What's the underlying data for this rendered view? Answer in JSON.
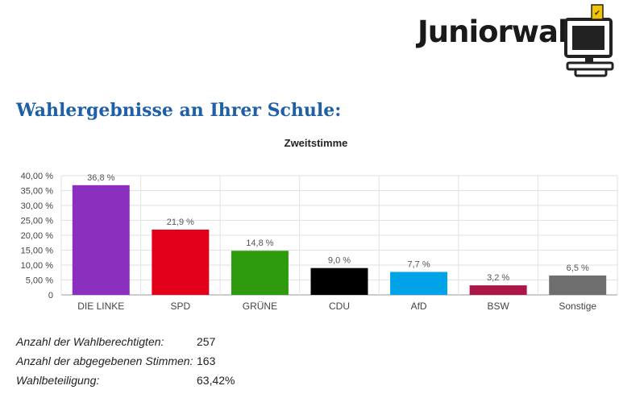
{
  "header": {
    "logo_text": "Juniorwahl",
    "title": "Wahlergebnisse an Ihrer Schule:"
  },
  "chart_data": {
    "type": "bar",
    "title": "Zweitstimme",
    "xlabel": "",
    "ylabel": "",
    "ylim": [
      0,
      40
    ],
    "yticks": [
      "0",
      "5,00 %",
      "10,00 %",
      "15,00 %",
      "20,00 %",
      "25,00 %",
      "30,00 %",
      "35,00 %",
      "40,00 %"
    ],
    "grid": true,
    "legend": "none",
    "categories": [
      "DIE LINKE",
      "SPD",
      "GRÜNE",
      "CDU",
      "AfD",
      "BSW",
      "Sonstige"
    ],
    "values": [
      36.8,
      21.9,
      14.8,
      9.0,
      7.7,
      3.2,
      6.5
    ],
    "value_labels": [
      "36,8 %",
      "21,9 %",
      "14,8 %",
      "9,0 %",
      "7,7 %",
      "3,2 %",
      "6,5 %"
    ],
    "colors": [
      "#8a2fbf",
      "#e3001b",
      "#2e9a0e",
      "#000000",
      "#00a3e8",
      "#aa1747",
      "#6e6e6e"
    ]
  },
  "stats": [
    {
      "label": "Anzahl der Wahlberechtigten:",
      "value": "257"
    },
    {
      "label": "Anzahl der abgegebenen Stimmen:",
      "value": "163"
    },
    {
      "label": "Wahlbeteiligung:",
      "value": "63,42%"
    }
  ]
}
